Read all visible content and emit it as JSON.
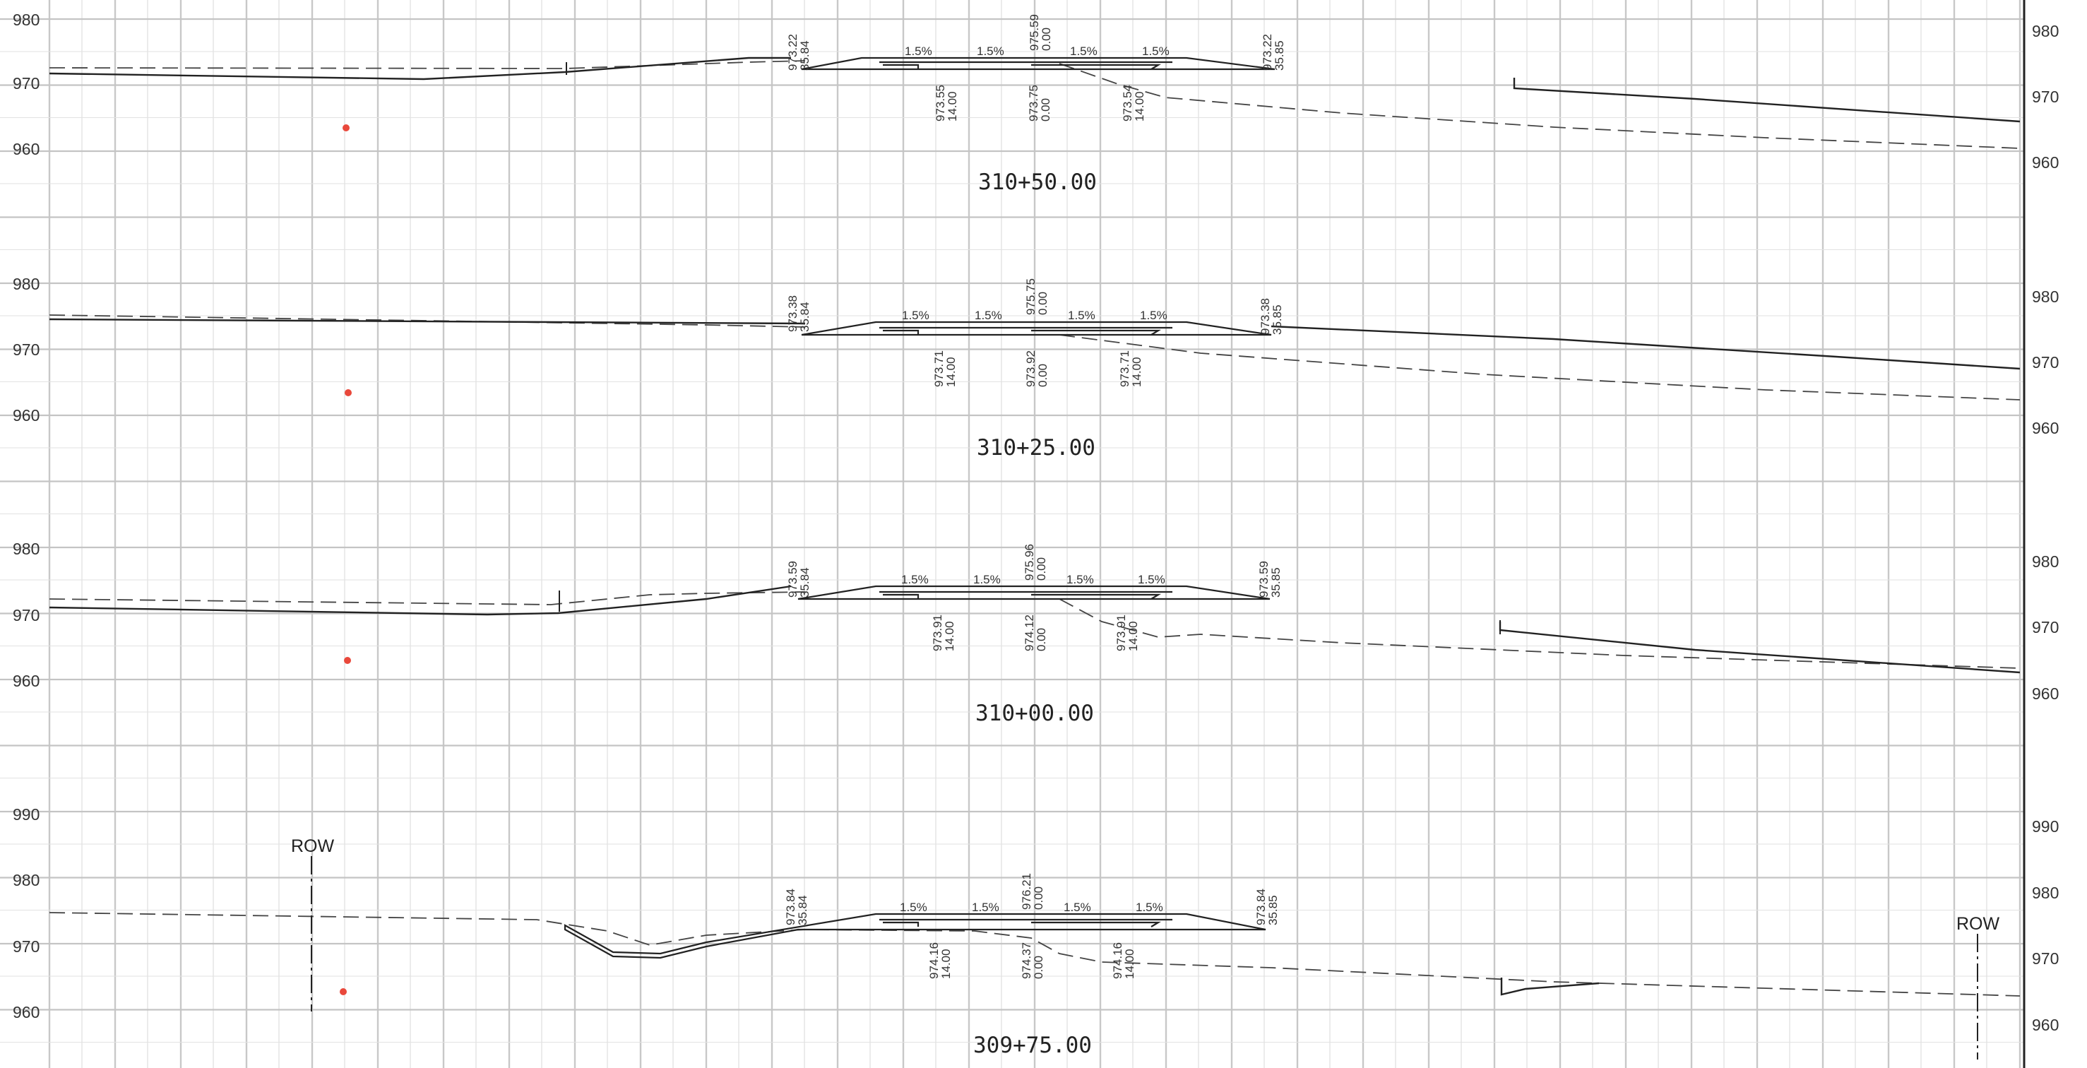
{
  "sheet": {
    "colors": {
      "grid": "#c8c8c8",
      "ink": "#222222",
      "control_point": "#e9483b"
    }
  },
  "sections": [
    {
      "station": "310+50.00",
      "elev_labels_left": [
        "980",
        "970",
        "960"
      ],
      "elev_labels_right": [
        "980",
        "970",
        "960"
      ],
      "slopes": [
        "1.5%",
        "1.5%",
        "1.5%",
        "1.5%"
      ],
      "labels_top": [
        {
          "elev": "973.22",
          "offset": "35.84"
        },
        {
          "elev": "975.59",
          "offset": "0.00"
        },
        {
          "elev": "973.22",
          "offset": "35.85"
        }
      ],
      "labels_bottom": [
        {
          "elev": "973.55",
          "offset": "14.00"
        },
        {
          "elev": "973.75",
          "offset": "0.00"
        },
        {
          "elev": "973.54",
          "offset": "14.00"
        }
      ]
    },
    {
      "station": "310+25.00",
      "elev_labels_left": [
        "980",
        "970",
        "960"
      ],
      "elev_labels_right": [
        "980",
        "970",
        "960"
      ],
      "slopes": [
        "1.5%",
        "1.5%",
        "1.5%",
        "1.5%"
      ],
      "labels_top": [
        {
          "elev": "973.38",
          "offset": "35.84"
        },
        {
          "elev": "975.75",
          "offset": "0.00"
        },
        {
          "elev": "973.38",
          "offset": "35.85"
        }
      ],
      "labels_bottom": [
        {
          "elev": "973.71",
          "offset": "14.00"
        },
        {
          "elev": "973.92",
          "offset": "0.00"
        },
        {
          "elev": "973.71",
          "offset": "14.00"
        }
      ]
    },
    {
      "station": "310+00.00",
      "elev_labels_left": [
        "980",
        "970",
        "960"
      ],
      "elev_labels_right": [
        "980",
        "970",
        "960"
      ],
      "slopes": [
        "1.5%",
        "1.5%",
        "1.5%",
        "1.5%"
      ],
      "labels_top": [
        {
          "elev": "973.59",
          "offset": "35.84"
        },
        {
          "elev": "975.96",
          "offset": "0.00"
        },
        {
          "elev": "973.59",
          "offset": "35.85"
        }
      ],
      "labels_bottom": [
        {
          "elev": "973.91",
          "offset": "14.00"
        },
        {
          "elev": "974.12",
          "offset": "0.00"
        },
        {
          "elev": "973.91",
          "offset": "14.00"
        }
      ]
    },
    {
      "station": "309+75.00",
      "elev_labels_left": [
        "990",
        "980",
        "970",
        "960"
      ],
      "elev_labels_right": [
        "990",
        "980",
        "970",
        "960"
      ],
      "slopes": [
        "1.5%",
        "1.5%",
        "1.5%",
        "1.5%"
      ],
      "labels_top": [
        {
          "elev": "973.84",
          "offset": "35.84"
        },
        {
          "elev": "976.21",
          "offset": "0.00"
        },
        {
          "elev": "973.84",
          "offset": "35.85"
        }
      ],
      "labels_bottom": [
        {
          "elev": "974.16",
          "offset": "14.00"
        },
        {
          "elev": "974.37",
          "offset": "0.00"
        },
        {
          "elev": "974.16",
          "offset": "14.00"
        }
      ],
      "row_label_left": "ROW",
      "row_label_right": "ROW"
    }
  ]
}
